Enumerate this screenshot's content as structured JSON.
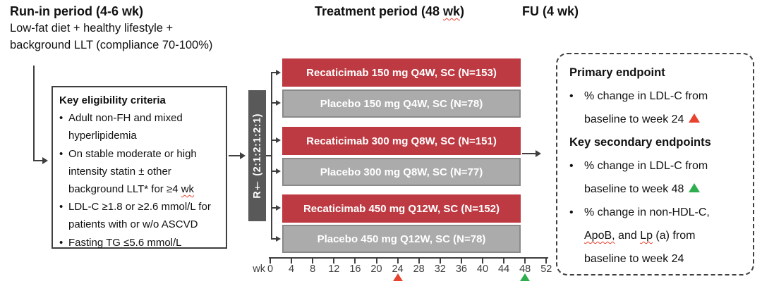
{
  "headers": {
    "run_in_title": "Run-in period (4-6 wk)",
    "run_in_sub1": "Low-fat diet + healthy lifestyle +",
    "run_in_sub2": "background LLT (compliance 70-100%)",
    "treatment_title_pre": "Treatment period (48 ",
    "treatment_title_wavy": "wk",
    "treatment_title_post": ")",
    "fu_title": "FU (4 wk)"
  },
  "ui": {
    "bullet": "•"
  },
  "eligibility": {
    "title": "Key eligibility criteria",
    "items": [
      {
        "bullet": true,
        "text": "Adult non-FH and mixed"
      },
      {
        "bullet": false,
        "text": "hyperlipidemia"
      },
      {
        "bullet": true,
        "text": "On stable moderate or high"
      },
      {
        "bullet": false,
        "text": "intensity statin ± other"
      },
      {
        "bullet": false,
        "pre": "background LLT* for ≥4 ",
        "wavy": "wk"
      },
      {
        "bullet": true,
        "text": "LDL-C ≥1.8 or ≥2.6 mmol/L for"
      },
      {
        "bullet": false,
        "text": "patients with or w/o ASCVD"
      },
      {
        "bullet": true,
        "text": "Fasting TG ≤5.6 mmol/L"
      }
    ]
  },
  "randomization": {
    "label": "R† (2:1:2:1:2:1)"
  },
  "arms": [
    {
      "type": "treatment",
      "label": "Recaticimab 150 mg Q4W, SC (N=153)"
    },
    {
      "type": "placebo",
      "label": "Placebo 150 mg Q4W, SC (N=78)"
    },
    {
      "type": "treatment",
      "label": "Recaticimab 300 mg Q8W, SC (N=151)"
    },
    {
      "type": "placebo",
      "label": "Placebo 300 mg Q8W, SC (N=77)"
    },
    {
      "type": "treatment",
      "label": "Recaticimab 450 mg Q12W, SC (N=152)"
    },
    {
      "type": "placebo",
      "label": "Placebo 450 mg Q12W, SC (N=78)"
    }
  ],
  "axis": {
    "unit_label": "wk",
    "ticks": [
      "0",
      "4",
      "8",
      "12",
      "16",
      "20",
      "24",
      "28",
      "32",
      "36",
      "40",
      "44",
      "48",
      "52"
    ],
    "week24_marker": "red-triangle",
    "week48_marker": "green-triangle"
  },
  "endpoints": {
    "primary_title": "Primary endpoint",
    "primary_l1": "% change in LDL-C from",
    "primary_l2": "baseline to week 24",
    "secondary_title": "Key secondary endpoints",
    "secondary1_l1": "% change in LDL-C from",
    "secondary1_l2": "baseline to week 48",
    "secondary2_l1": "% change in non-HDL-C,",
    "secondary2_l2_w1": "ApoB,",
    "secondary2_l2_mid": " and ",
    "secondary2_l2_w2": "Lp",
    "secondary2_l2_end": " (a) from",
    "secondary2_l3": "baseline to week 24"
  },
  "colors": {
    "treatment": "#BE3A42",
    "placebo": "#ABABAB",
    "placebo_border": "#8A8A8A",
    "randomization_box": "#595959",
    "line": "#3F3F3F",
    "marker_red": "#E8432F",
    "marker_green": "#2EAE4E"
  }
}
